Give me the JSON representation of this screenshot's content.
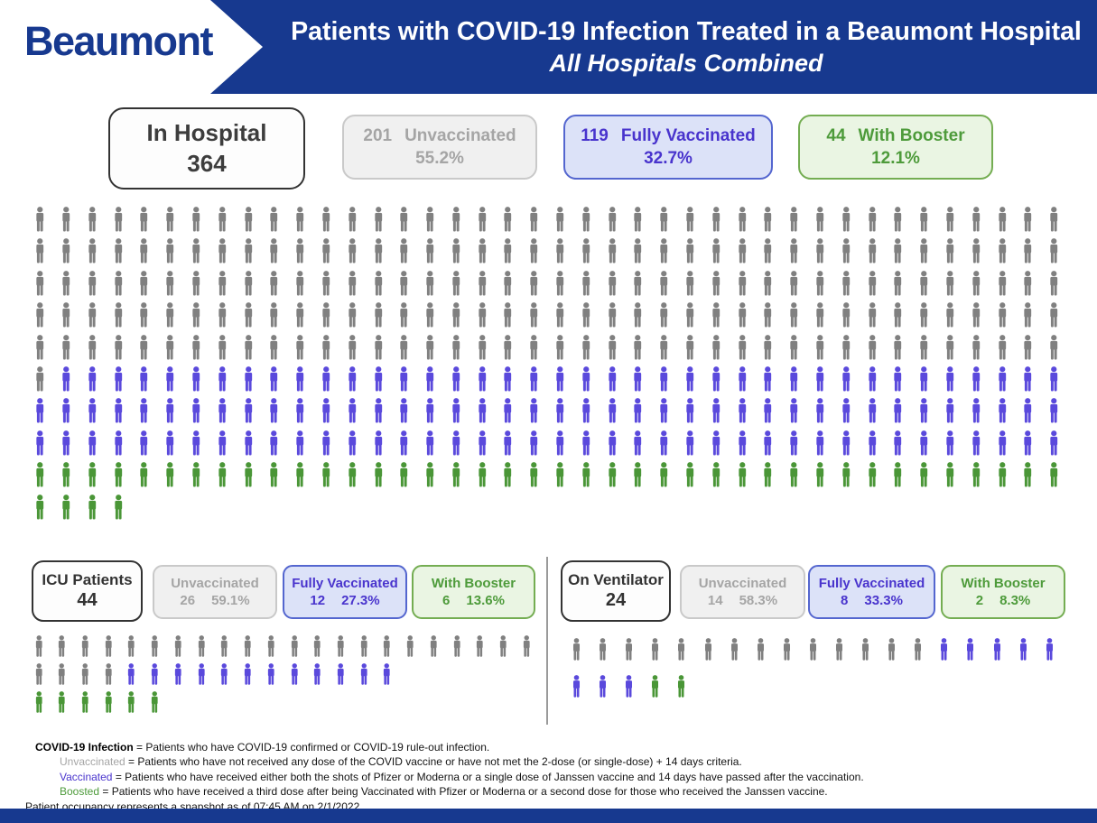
{
  "header": {
    "logo": "Beaumont",
    "title_line1": "Patients with COVID-19 Infection Treated in a Beaumont Hospital",
    "title_line2": "All Hospitals Combined"
  },
  "summary": {
    "in_hospital": {
      "label": "In Hospital",
      "value": "364"
    },
    "unvaccinated": {
      "count": "201",
      "label": "Unvaccinated",
      "pct": "55.2%"
    },
    "fully_vaccinated": {
      "count": "119",
      "label": "Fully Vaccinated",
      "pct": "32.7%"
    },
    "with_booster": {
      "count": "44",
      "label": "With Booster",
      "pct": "12.1%"
    }
  },
  "icu": {
    "title": "ICU Patients",
    "value": "44",
    "unvaccinated": {
      "label": "Unvaccinated",
      "count": "26",
      "pct": "59.1%"
    },
    "fully_vaccinated": {
      "label": "Fully Vaccinated",
      "count": "12",
      "pct": "27.3%"
    },
    "with_booster": {
      "label": "With Booster",
      "count": "6",
      "pct": "13.6%"
    }
  },
  "ventilator": {
    "title": "On Ventilator",
    "value": "24",
    "unvaccinated": {
      "label": "Unvaccinated",
      "count": "14",
      "pct": "58.3%"
    },
    "fully_vaccinated": {
      "label": "Fully Vaccinated",
      "count": "8",
      "pct": "33.3%"
    },
    "with_booster": {
      "label": "With Booster",
      "count": "2",
      "pct": "8.3%"
    }
  },
  "footnotes": [
    {
      "lead": "COVID-19 Infection",
      "rest": " = Patients who have COVID-19 confirmed or COVID-19 rule-out infection."
    },
    {
      "lead": "Unvaccinated",
      "rest": " = Patients who have not received any dose of the COVID vaccine or have not met the 2-dose (or single-dose) + 14 days criteria."
    },
    {
      "lead": "Vaccinated",
      "rest": " = Patients who have received either both the shots of Pfizer or Moderna or a single dose of Janssen vaccine and 14 days have passed after the vaccination."
    },
    {
      "lead": "Boosted",
      "rest": " = Patients who have received a third dose after being Vaccinated with Pfizer or Moderna or a second dose for those who received the Janssen vaccine."
    }
  ],
  "snapshot": "Patient occupancy represents a snapshot as of 07:45 AM on 2/1/2022",
  "colors": {
    "navy": "#17398f",
    "icon_gray": "#808080",
    "icon_blue": "#5a49dc",
    "icon_green": "#4a9637",
    "unvaccinated_text": "#a5a5a5",
    "vaccinated_text": "#4934cd",
    "booster_text": "#4e9b3b"
  },
  "grids": {
    "main": {
      "columns": 40,
      "rows": [
        [
          {
            "color": "gray",
            "count": 40
          }
        ],
        [
          {
            "color": "gray",
            "count": 40
          }
        ],
        [
          {
            "color": "gray",
            "count": 40
          }
        ],
        [
          {
            "color": "gray",
            "count": 40
          }
        ],
        [
          {
            "color": "gray",
            "count": 40
          }
        ],
        [
          {
            "color": "gray",
            "count": 1
          },
          {
            "color": "blue",
            "count": 39
          }
        ],
        [
          {
            "color": "blue",
            "count": 40
          }
        ],
        [
          {
            "color": "blue",
            "count": 40
          }
        ],
        [
          {
            "color": "green",
            "count": 40
          }
        ],
        [
          {
            "color": "green",
            "count": 4
          }
        ]
      ]
    },
    "icu": {
      "columns": 22,
      "rows": [
        [
          {
            "color": "gray",
            "count": 22
          }
        ],
        [
          {
            "color": "gray",
            "count": 4
          },
          {
            "color": "blue",
            "count": 12
          }
        ],
        [
          {
            "color": "green",
            "count": 6
          }
        ]
      ]
    },
    "ventilator": {
      "columns": 19,
      "rows": [
        [
          {
            "color": "gray",
            "count": 14
          },
          {
            "color": "blue",
            "count": 5
          }
        ],
        [
          {
            "color": "blue",
            "count": 3
          },
          {
            "color": "green",
            "count": 2
          }
        ]
      ]
    }
  },
  "chart_data": [
    {
      "type": "pictogram",
      "title": "In Hospital",
      "total": 364,
      "categories": [
        "Unvaccinated",
        "Fully Vaccinated",
        "With Booster"
      ],
      "values": [
        201,
        119,
        44
      ],
      "percents": [
        55.2,
        32.7,
        12.1
      ],
      "legend_position": "top",
      "icon": "person"
    },
    {
      "type": "pictogram",
      "title": "ICU Patients",
      "total": 44,
      "categories": [
        "Unvaccinated",
        "Fully Vaccinated",
        "With Booster"
      ],
      "values": [
        26,
        12,
        6
      ],
      "percents": [
        59.1,
        27.3,
        13.6
      ],
      "legend_position": "top",
      "icon": "person"
    },
    {
      "type": "pictogram",
      "title": "On Ventilator",
      "total": 24,
      "categories": [
        "Unvaccinated",
        "Fully Vaccinated",
        "With Booster"
      ],
      "values": [
        14,
        8,
        2
      ],
      "percents": [
        58.3,
        33.3,
        8.3
      ],
      "legend_position": "top",
      "icon": "person"
    }
  ]
}
